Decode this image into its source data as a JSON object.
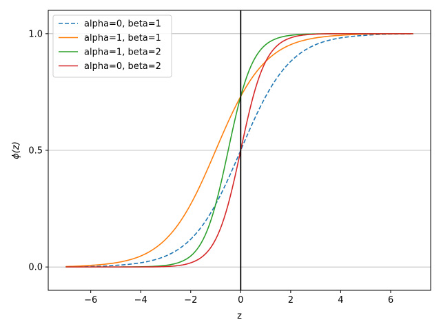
{
  "chart_data": {
    "type": "line",
    "title": "",
    "xlabel": "z",
    "ylabel": "ϕ(z)",
    "xlim": [
      -7.7,
      7.6
    ],
    "ylim": [
      -0.1,
      1.1
    ],
    "xticks": [
      -6,
      -4,
      -2,
      0,
      2,
      4,
      6
    ],
    "yticks": [
      0.0,
      0.5,
      1.0
    ],
    "xtick_labels": [
      "−6",
      "−4",
      "−2",
      "0",
      "2",
      "4",
      "6"
    ],
    "ytick_labels": [
      "0.0",
      "0.5",
      "1.0"
    ],
    "grid": "horizontal",
    "legend_position": "upper-left",
    "vertical_reference_line_x": 0,
    "x": [
      -7,
      -6,
      -5,
      -4,
      -3,
      -2,
      -1,
      0,
      1,
      2,
      3,
      4,
      5,
      6,
      6.9
    ],
    "series": [
      {
        "name": "alpha=0, beta=1",
        "color": "#1f77b4",
        "dash": "dashed",
        "values": [
          0.001,
          0.002,
          0.007,
          0.018,
          0.047,
          0.119,
          0.269,
          0.5,
          0.731,
          0.881,
          0.953,
          0.982,
          0.993,
          0.998,
          0.999
        ]
      },
      {
        "name": "alpha=1, beta=1",
        "color": "#ff7f0e",
        "dash": "solid",
        "values": [
          0.002,
          0.007,
          0.018,
          0.047,
          0.119,
          0.269,
          0.5,
          0.731,
          0.881,
          0.953,
          0.982,
          0.993,
          0.998,
          0.999,
          1.0
        ]
      },
      {
        "name": "alpha=1, beta=2",
        "color": "#2ca02c",
        "dash": "solid",
        "values": [
          0.0,
          0.0,
          0.0,
          0.001,
          0.007,
          0.047,
          0.269,
          0.731,
          0.953,
          0.993,
          0.999,
          1.0,
          1.0,
          1.0,
          1.0
        ]
      },
      {
        "name": "alpha=0, beta=2",
        "color": "#d62728",
        "dash": "solid",
        "values": [
          0.0,
          0.0,
          0.0,
          0.0,
          0.002,
          0.018,
          0.119,
          0.5,
          0.881,
          0.982,
          0.998,
          1.0,
          1.0,
          1.0,
          1.0
        ]
      }
    ]
  }
}
